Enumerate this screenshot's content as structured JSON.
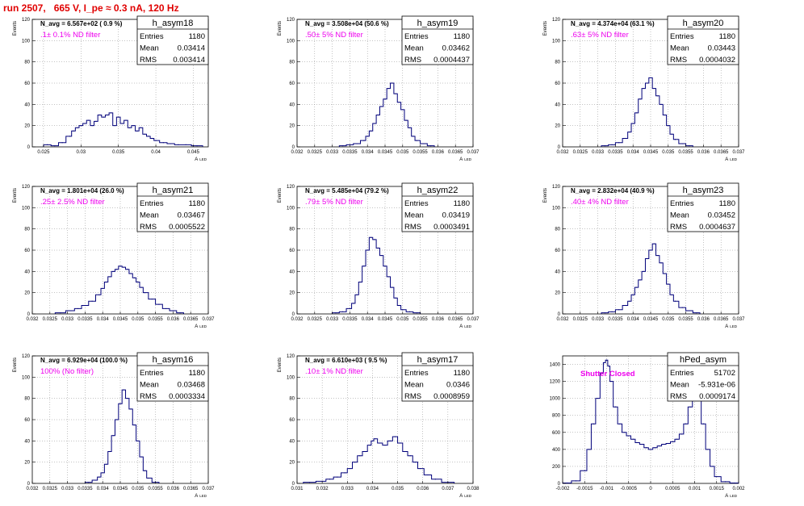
{
  "title": "run 2507,   665 V, I_pe ≈ 0.3 nA, 120 Hz",
  "colors": {
    "title": "#e00000",
    "histogram": "#00007a",
    "note": "#ee00ee",
    "grid": "#888888"
  },
  "chart_data": [
    {
      "type": "bar",
      "name": "h_asym18",
      "entries": "1180",
      "mean": "0.03414",
      "rms": "0.003414",
      "n_avg": "N_avg = 6.567e+02 ( 0.9 %)",
      "filter": ".1± 0.1% ND filter",
      "xlabel": "A_LED",
      "ylabel": "Events",
      "xlim": [
        0.0235,
        0.047
      ],
      "ylim": [
        0,
        120
      ],
      "xticks": [
        "0.025",
        "0.03",
        "0.035",
        "0.04",
        "0.045"
      ],
      "yticks": [
        "0",
        "20",
        "40",
        "60",
        "80",
        "100",
        "120"
      ],
      "x": [
        0.0255,
        0.0265,
        0.0275,
        0.0285,
        0.029,
        0.0295,
        0.03,
        0.0305,
        0.031,
        0.0315,
        0.032,
        0.0325,
        0.033,
        0.0335,
        0.034,
        0.0345,
        0.035,
        0.0355,
        0.036,
        0.0365,
        0.037,
        0.0375,
        0.038,
        0.0385,
        0.039,
        0.0395,
        0.04,
        0.041,
        0.042,
        0.043,
        0.044,
        0.0455
      ],
      "values": [
        2,
        1,
        4,
        10,
        15,
        18,
        20,
        22,
        25,
        20,
        24,
        30,
        28,
        30,
        32,
        20,
        28,
        22,
        25,
        18,
        20,
        15,
        18,
        12,
        10,
        8,
        6,
        4,
        3,
        2,
        2,
        1
      ]
    },
    {
      "type": "bar",
      "name": "h_asym19",
      "entries": "1180",
      "mean": "0.03462",
      "rms": "0.0004437",
      "n_avg": "N_avg = 3.508e+04 (50.6 %)",
      "filter": ".50± 5% ND filter",
      "xlabel": "A_LED",
      "ylabel": "Events",
      "xlim": [
        0.032,
        0.037
      ],
      "ylim": [
        0,
        120
      ],
      "xticks": [
        "0.032",
        "0.0325",
        "0.033",
        "0.0335",
        "0.034",
        "0.0345",
        "0.035",
        "0.0355",
        "0.036",
        "0.0365",
        "0.037"
      ],
      "yticks": [
        "0",
        "20",
        "40",
        "60",
        "80",
        "100",
        "120"
      ],
      "x": [
        0.0333,
        0.0335,
        0.0337,
        0.0339,
        0.034,
        0.0341,
        0.0342,
        0.0343,
        0.0344,
        0.0345,
        0.0346,
        0.0347,
        0.0348,
        0.0349,
        0.035,
        0.0351,
        0.0352,
        0.0353,
        0.0354,
        0.0356,
        0.0358
      ],
      "values": [
        1,
        2,
        3,
        6,
        10,
        15,
        22,
        30,
        38,
        45,
        55,
        60,
        50,
        42,
        35,
        25,
        18,
        10,
        6,
        3,
        1
      ]
    },
    {
      "type": "bar",
      "name": "h_asym20",
      "entries": "1180",
      "mean": "0.03443",
      "rms": "0.0004032",
      "n_avg": "N_avg = 4.374e+04 (63.1 %)",
      "filter": ".63± 5% ND filter",
      "xlabel": "A_LED",
      "ylabel": "Events",
      "xlim": [
        0.032,
        0.037
      ],
      "ylim": [
        0,
        120
      ],
      "xticks": [
        "0.032",
        "0.0325",
        "0.033",
        "0.0335",
        "0.034",
        "0.0345",
        "0.035",
        "0.0355",
        "0.036",
        "0.0365",
        "0.037"
      ],
      "yticks": [
        "0",
        "20",
        "40",
        "60",
        "80",
        "100",
        "120"
      ],
      "x": [
        0.0332,
        0.0334,
        0.0336,
        0.0338,
        0.0339,
        0.034,
        0.0341,
        0.0342,
        0.0343,
        0.0344,
        0.0345,
        0.0346,
        0.0347,
        0.0348,
        0.0349,
        0.035,
        0.0351,
        0.0352,
        0.0354,
        0.0356
      ],
      "values": [
        1,
        2,
        4,
        8,
        14,
        22,
        32,
        45,
        55,
        60,
        65,
        55,
        48,
        40,
        30,
        20,
        12,
        7,
        3,
        1
      ]
    },
    {
      "type": "bar",
      "name": "h_asym21",
      "entries": "1180",
      "mean": "0.03467",
      "rms": "0.0005522",
      "n_avg": "N_avg = 1.801e+04 (26.0 %)",
      "filter": ".25± 2.5% ND filter",
      "xlabel": "A_LED",
      "ylabel": "Events",
      "xlim": [
        0.032,
        0.037
      ],
      "ylim": [
        0,
        120
      ],
      "xticks": [
        "0.032",
        "0.0325",
        "0.033",
        "0.0335",
        "0.034",
        "0.0345",
        "0.035",
        "0.0355",
        "0.036",
        "0.0365",
        "0.037"
      ],
      "yticks": [
        "0",
        "20",
        "40",
        "60",
        "80",
        "100",
        "120"
      ],
      "x": [
        0.0328,
        0.0331,
        0.0333,
        0.0335,
        0.0337,
        0.0339,
        0.034,
        0.0341,
        0.0342,
        0.0343,
        0.0344,
        0.0345,
        0.0346,
        0.0347,
        0.0348,
        0.0349,
        0.035,
        0.0351,
        0.0352,
        0.0354,
        0.0356,
        0.0358,
        0.036,
        0.0362
      ],
      "values": [
        1,
        3,
        5,
        8,
        12,
        18,
        24,
        30,
        35,
        40,
        42,
        45,
        44,
        42,
        38,
        34,
        30,
        25,
        20,
        14,
        9,
        5,
        3,
        1
      ]
    },
    {
      "type": "bar",
      "name": "h_asym22",
      "entries": "1180",
      "mean": "0.03419",
      "rms": "0.0003491",
      "n_avg": "N_avg = 5.485e+04 (79.2 %)",
      "filter": ".79± 5% ND filter",
      "xlabel": "A_LED",
      "ylabel": "Events",
      "xlim": [
        0.032,
        0.037
      ],
      "ylim": [
        0,
        120
      ],
      "xticks": [
        "0.032",
        "0.0325",
        "0.033",
        "0.0335",
        "0.034",
        "0.0345",
        "0.035",
        "0.0355",
        "0.036",
        "0.0365",
        "0.037"
      ],
      "yticks": [
        "0",
        "20",
        "40",
        "60",
        "80",
        "100",
        "120"
      ],
      "x": [
        0.0331,
        0.0333,
        0.0335,
        0.0336,
        0.0337,
        0.0338,
        0.0339,
        0.034,
        0.0341,
        0.0342,
        0.0343,
        0.0344,
        0.0345,
        0.0346,
        0.0347,
        0.0348,
        0.0349,
        0.035,
        0.0352,
        0.0354
      ],
      "values": [
        1,
        2,
        5,
        10,
        18,
        30,
        45,
        60,
        72,
        70,
        62,
        55,
        45,
        35,
        25,
        15,
        8,
        4,
        2,
        1
      ]
    },
    {
      "type": "bar",
      "name": "h_asym23",
      "entries": "1180",
      "mean": "0.03452",
      "rms": "0.0004637",
      "n_avg": "N_avg = 2.832e+04 (40.9 %)",
      "filter": ".40± 4% ND filter",
      "xlabel": "A_LED",
      "ylabel": "Events",
      "xlim": [
        0.032,
        0.037
      ],
      "ylim": [
        0,
        120
      ],
      "xticks": [
        "0.032",
        "0.0325",
        "0.033",
        "0.0335",
        "0.034",
        "0.0345",
        "0.035",
        "0.0355",
        "0.036",
        "0.0365",
        "0.037"
      ],
      "yticks": [
        "0",
        "20",
        "40",
        "60",
        "80",
        "100",
        "120"
      ],
      "x": [
        0.0332,
        0.0334,
        0.0336,
        0.0338,
        0.0339,
        0.034,
        0.0341,
        0.0342,
        0.0343,
        0.0344,
        0.0345,
        0.0346,
        0.0347,
        0.0348,
        0.0349,
        0.035,
        0.0351,
        0.0352,
        0.0354,
        0.0356,
        0.0358
      ],
      "values": [
        1,
        2,
        4,
        8,
        12,
        18,
        25,
        32,
        40,
        52,
        60,
        66,
        55,
        48,
        38,
        28,
        18,
        12,
        6,
        3,
        1
      ]
    },
    {
      "type": "bar",
      "name": "h_asym16",
      "entries": "1180",
      "mean": "0.03468",
      "rms": "0.0003334",
      "n_avg": "N_avg = 6.929e+04 (100.0 %)",
      "filter": "100% (No filter)",
      "xlabel": "A_LED",
      "ylabel": "Events",
      "xlim": [
        0.032,
        0.037
      ],
      "ylim": [
        0,
        120
      ],
      "xticks": [
        "0.032",
        "0.0325",
        "0.033",
        "0.0335",
        "0.034",
        "0.0345",
        "0.035",
        "0.0355",
        "0.036",
        "0.0365",
        "0.037"
      ],
      "yticks": [
        "0",
        "20",
        "40",
        "60",
        "80",
        "100",
        "120"
      ],
      "x": [
        0.0336,
        0.0338,
        0.0339,
        0.034,
        0.0341,
        0.0342,
        0.0343,
        0.0344,
        0.0345,
        0.0346,
        0.0347,
        0.0348,
        0.0349,
        0.035,
        0.0351,
        0.0352,
        0.0353,
        0.0355
      ],
      "values": [
        1,
        3,
        6,
        10,
        18,
        30,
        45,
        60,
        75,
        88,
        80,
        70,
        55,
        40,
        25,
        12,
        5,
        1
      ]
    },
    {
      "type": "bar",
      "name": "h_asym17",
      "entries": "1180",
      "mean": "0.0346",
      "rms": "0.0008959",
      "n_avg": "N_avg = 6.610e+03 ( 9.5 %)",
      "filter": ".10± 1% ND filter",
      "xlabel": "A_LED",
      "ylabel": "Events",
      "xlim": [
        0.031,
        0.038
      ],
      "ylim": [
        0,
        120
      ],
      "xticks": [
        "0.031",
        "0.032",
        "0.033",
        "0.034",
        "0.035",
        "0.036",
        "0.037",
        "0.038"
      ],
      "yticks": [
        "0",
        "20",
        "40",
        "60",
        "80",
        "100",
        "120"
      ],
      "x": [
        0.0315,
        0.032,
        0.0323,
        0.0326,
        0.0329,
        0.0331,
        0.0333,
        0.0335,
        0.0337,
        0.0339,
        0.034,
        0.0341,
        0.0343,
        0.0345,
        0.0347,
        0.0349,
        0.0351,
        0.0353,
        0.0355,
        0.0357,
        0.0359,
        0.0362,
        0.0365,
        0.037
      ],
      "values": [
        1,
        2,
        4,
        6,
        10,
        14,
        20,
        26,
        30,
        36,
        40,
        42,
        38,
        36,
        40,
        44,
        38,
        30,
        26,
        20,
        14,
        8,
        4,
        1
      ]
    },
    {
      "type": "line",
      "name": "hPed_asym",
      "entries": "51702",
      "mean": "-5.931e-06",
      "rms": "0.0009174",
      "note": "Shutter Closed",
      "xlabel": "A_LED",
      "ylabel": "",
      "xlim": [
        -0.002,
        0.002
      ],
      "ylim": [
        0,
        1500
      ],
      "xticks": [
        "-0.002",
        "-0.0015",
        "-0.001",
        "-0.0005",
        "0",
        "0.0005",
        "0.001",
        "0.0015",
        "0.002"
      ],
      "yticks": [
        "0",
        "200",
        "400",
        "600",
        "800",
        "1000",
        "1200",
        "1400"
      ],
      "x": [
        -0.0019,
        -0.0017,
        -0.0015,
        -0.0014,
        -0.0013,
        -0.0012,
        -0.0011,
        -0.00105,
        -0.001,
        -0.00095,
        -0.0009,
        -0.0008,
        -0.0007,
        -0.0006,
        -0.0005,
        -0.0004,
        -0.0003,
        -0.0002,
        -0.0001,
        0,
        0.0001,
        0.0002,
        0.0003,
        0.0004,
        0.0005,
        0.0006,
        0.0007,
        0.0008,
        0.0009,
        0.001,
        0.00105,
        0.0011,
        0.0012,
        0.0013,
        0.0014,
        0.0015,
        0.0017,
        0.0019
      ],
      "values": [
        5,
        30,
        150,
        400,
        700,
        1000,
        1300,
        1420,
        1450,
        1380,
        1200,
        900,
        700,
        600,
        560,
        520,
        480,
        460,
        420,
        400,
        420,
        440,
        460,
        470,
        490,
        520,
        580,
        700,
        900,
        1050,
        1100,
        1000,
        700,
        400,
        200,
        80,
        20,
        5
      ]
    }
  ]
}
